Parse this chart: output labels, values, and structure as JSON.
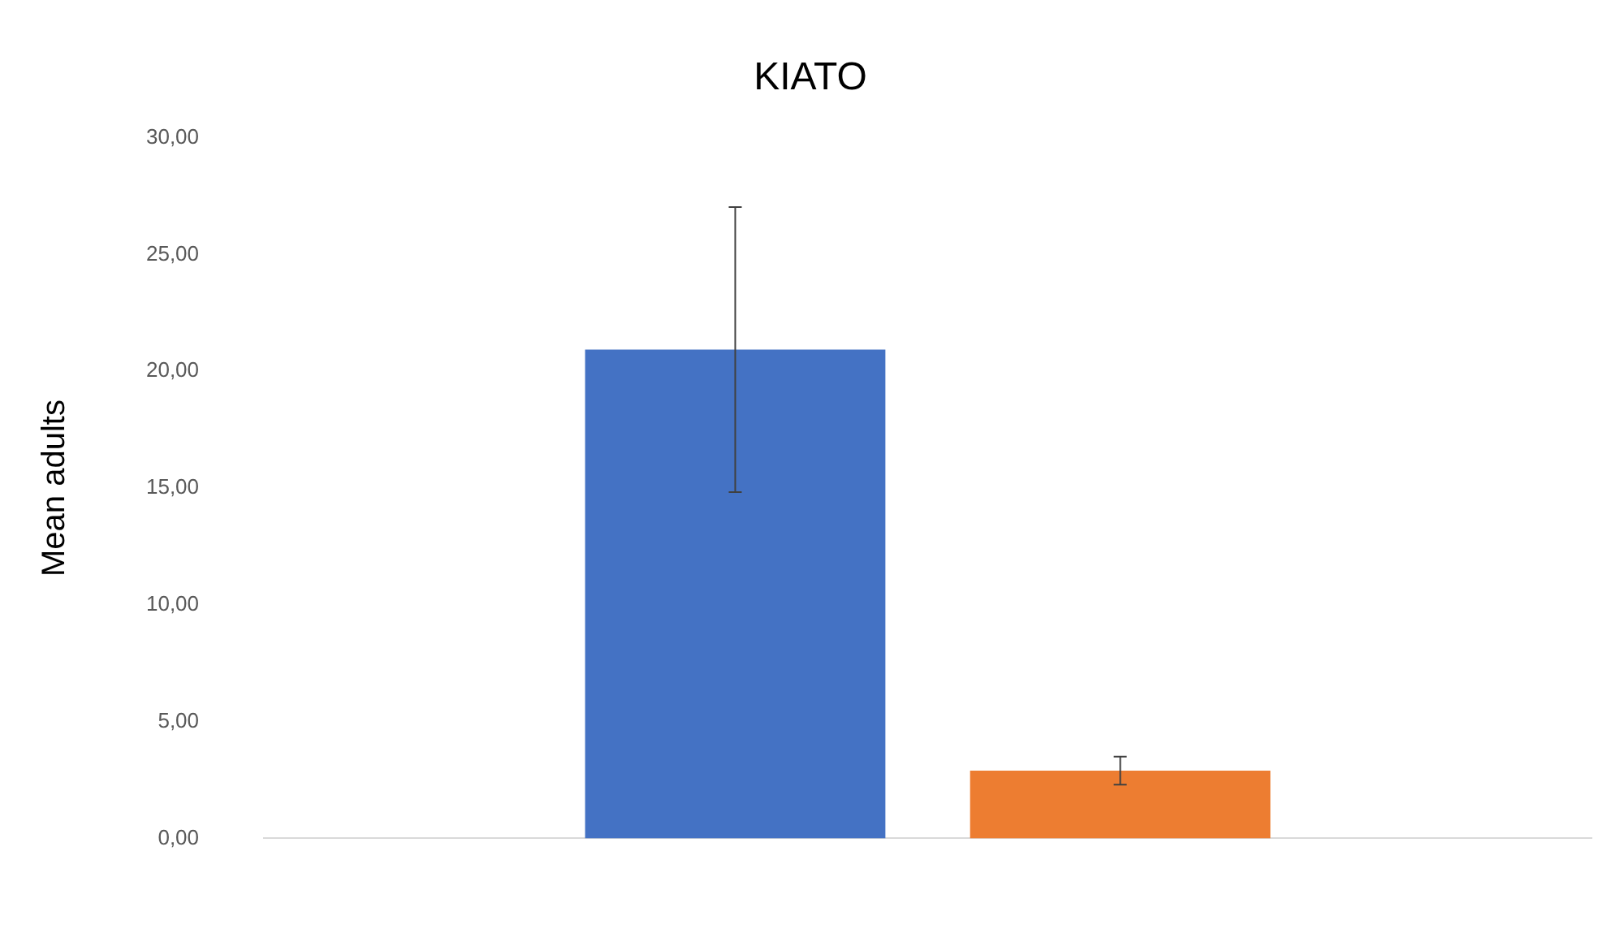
{
  "chart_data": {
    "type": "bar",
    "title": "KIATO",
    "ylabel": "Mean adults",
    "categories": [
      null
    ],
    "series": [
      {
        "color": "#4472c4",
        "values": [
          20.93
        ],
        "errors": [
          6.1
        ]
      },
      {
        "color": "#ed7d31",
        "values": [
          2.9
        ],
        "errors": [
          0.6
        ]
      }
    ],
    "ylim": [
      0,
      30
    ],
    "yticks": [
      {
        "value": 0,
        "label": "0,00"
      },
      {
        "value": 5,
        "label": "5,00"
      },
      {
        "value": 10,
        "label": "10,00"
      },
      {
        "value": 15,
        "label": "15,00"
      },
      {
        "value": 20,
        "label": "20,00"
      },
      {
        "value": 25,
        "label": "25,00"
      },
      {
        "value": 30,
        "label": "30,00"
      }
    ],
    "grid": false,
    "legend": false
  }
}
